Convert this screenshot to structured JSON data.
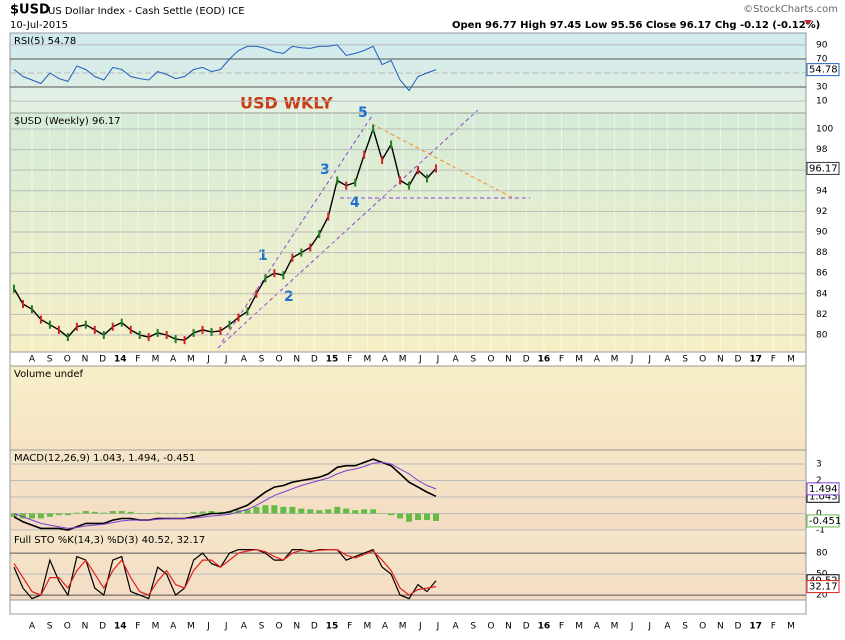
{
  "chart_data": {
    "type": "line",
    "title": "$USD",
    "subtitle": "US Dollar Index - Cash Settle (EOD) ICE",
    "date": "10-Jul-2015",
    "quote": "Open 96.77  High 97.45  Low 95.56  Close 96.17  Chg -0.12 (-0.12%)",
    "source": "©StockCharts.com",
    "annotation": "USD WKLY",
    "waves": [
      "1",
      "2",
      "3",
      "4",
      "5"
    ],
    "categories": [
      "A",
      "S",
      "O",
      "N",
      "D",
      "14",
      "F",
      "M",
      "A",
      "M",
      "J",
      "J",
      "A",
      "S",
      "O",
      "N",
      "D",
      "15",
      "F",
      "M",
      "A",
      "M",
      "J",
      "J",
      "A",
      "S",
      "O",
      "N",
      "D",
      "16",
      "F",
      "M",
      "A",
      "M",
      "J",
      "J",
      "A",
      "S",
      "O",
      "N",
      "D",
      "17",
      "F",
      "M"
    ],
    "price": {
      "header": "$USD (Weekly) 96.17",
      "last": 96.17,
      "color": "#000000",
      "ylim": [
        78.35,
        101.55
      ],
      "yticks": [
        80,
        82,
        84,
        86,
        88,
        90,
        92,
        94,
        96,
        98,
        100
      ],
      "values": [
        84.5,
        83,
        82.5,
        81.5,
        81,
        80.5,
        79.8,
        80.8,
        81,
        80.5,
        80,
        80.8,
        81.2,
        80.5,
        80,
        79.8,
        80.2,
        80,
        79.6,
        79.5,
        80.2,
        80.5,
        80.3,
        80.4,
        81,
        81.7,
        82.3,
        84,
        85.5,
        86,
        85.8,
        87.5,
        88,
        88.5,
        89.8,
        91.5,
        95,
        94.5,
        94.8,
        97.5,
        100,
        97,
        98.5,
        95,
        94.5,
        96,
        95.2,
        96.17
      ]
    },
    "rsi": {
      "header": "RSI(5) 54.78",
      "last": 54.78,
      "color": "#1f5fbf",
      "ylim": [
        -7,
        107
      ],
      "yticks": [
        10,
        30,
        50,
        70,
        90
      ],
      "values": [
        55,
        45,
        40,
        35,
        50,
        42,
        38,
        60,
        55,
        45,
        40,
        58,
        55,
        45,
        42,
        40,
        52,
        48,
        42,
        45,
        55,
        58,
        52,
        55,
        70,
        82,
        88,
        88,
        85,
        80,
        78,
        88,
        86,
        85,
        88,
        88,
        90,
        75,
        78,
        82,
        88,
        62,
        68,
        40,
        25,
        45,
        50,
        54.78
      ]
    },
    "volume": {
      "header": "Volume undef"
    },
    "macd": {
      "header": "MACD(12,26,9) 1.043, 1.494, -0.451",
      "ylim": [
        -1,
        3.85
      ],
      "yticks": [
        -1,
        0,
        1,
        2,
        3
      ],
      "series": [
        {
          "color": "#000000",
          "last": 1.043,
          "values": [
            -0.2,
            -0.5,
            -0.7,
            -0.9,
            -0.9,
            -0.9,
            -1.0,
            -0.8,
            -0.6,
            -0.6,
            -0.6,
            -0.4,
            -0.3,
            -0.3,
            -0.4,
            -0.4,
            -0.3,
            -0.3,
            -0.3,
            -0.3,
            -0.2,
            -0.1,
            0,
            0,
            0.1,
            0.3,
            0.5,
            0.9,
            1.3,
            1.6,
            1.7,
            1.9,
            2.0,
            2.1,
            2.2,
            2.4,
            2.8,
            2.9,
            2.9,
            3.1,
            3.3,
            3.1,
            2.9,
            2.4,
            1.9,
            1.6,
            1.3,
            1.043
          ]
        },
        {
          "color": "#7b3fd0",
          "last": 1.494,
          "values": [
            0,
            -0.2,
            -0.4,
            -0.6,
            -0.7,
            -0.8,
            -0.9,
            -0.85,
            -0.75,
            -0.7,
            -0.65,
            -0.55,
            -0.45,
            -0.4,
            -0.4,
            -0.4,
            -0.35,
            -0.33,
            -0.32,
            -0.31,
            -0.28,
            -0.22,
            -0.15,
            -0.1,
            -0.05,
            0.1,
            0.25,
            0.5,
            0.8,
            1.1,
            1.3,
            1.5,
            1.7,
            1.85,
            2.0,
            2.15,
            2.4,
            2.6,
            2.7,
            2.85,
            3.05,
            3.1,
            3.0,
            2.7,
            2.4,
            2.0,
            1.7,
            1.494
          ]
        }
      ],
      "histogram": {
        "color": "#66bb44",
        "last": -0.451,
        "values": [
          -0.2,
          -0.3,
          -0.3,
          -0.3,
          -0.2,
          -0.1,
          -0.1,
          0.05,
          0.15,
          0.1,
          0.05,
          0.15,
          0.15,
          0.1,
          0,
          0,
          0.05,
          0.03,
          0.02,
          0.01,
          0.08,
          0.12,
          0.15,
          0.1,
          0.15,
          0.2,
          0.25,
          0.4,
          0.5,
          0.5,
          0.4,
          0.4,
          0.3,
          0.25,
          0.2,
          0.25,
          0.4,
          0.3,
          0.2,
          0.25,
          0.25,
          0,
          -0.1,
          -0.3,
          -0.5,
          -0.4,
          -0.4,
          -0.451
        ]
      }
    },
    "sto": {
      "header": "Full STO %K(14,3) %D(3) 40.52, 32.17",
      "ylim": [
        13,
        113
      ],
      "yticks": [
        20,
        50,
        80
      ],
      "series": [
        {
          "color": "#000000",
          "last": 40.52,
          "values": [
            60,
            30,
            15,
            20,
            70,
            40,
            20,
            75,
            70,
            30,
            20,
            70,
            75,
            25,
            20,
            15,
            60,
            50,
            20,
            30,
            70,
            80,
            65,
            60,
            80,
            85,
            85,
            85,
            80,
            70,
            70,
            85,
            85,
            82,
            85,
            85,
            85,
            70,
            75,
            80,
            85,
            60,
            50,
            20,
            15,
            35,
            25,
            40.52
          ]
        },
        {
          "color": "#e02020",
          "last": 32.17,
          "values": [
            65,
            45,
            25,
            20,
            45,
            45,
            30,
            55,
            70,
            50,
            30,
            55,
            70,
            45,
            25,
            20,
            40,
            55,
            35,
            30,
            55,
            70,
            70,
            60,
            70,
            80,
            83,
            85,
            82,
            75,
            70,
            80,
            84,
            83,
            84,
            85,
            85,
            77,
            73,
            78,
            83,
            70,
            55,
            30,
            20,
            28,
            30,
            32.17
          ]
        }
      ]
    }
  }
}
